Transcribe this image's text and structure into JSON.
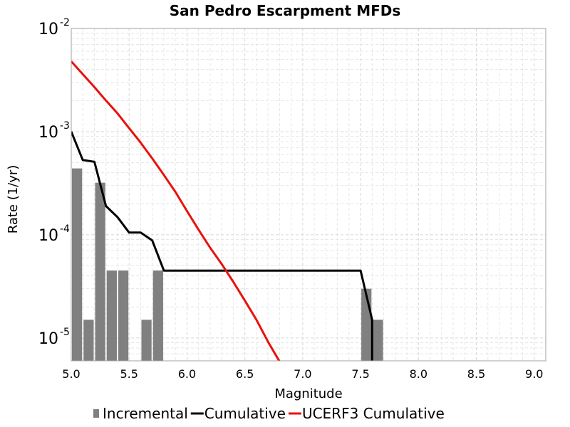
{
  "chart_data": {
    "type": "bar",
    "title": "San Pedro Escarpment MFDs",
    "xlabel": "Magnitude",
    "ylabel": "Rate (1/yr)",
    "xlim": [
      5.0,
      9.1
    ],
    "ylim": [
      6e-06,
      0.01
    ],
    "yscale": "log",
    "grid": true,
    "legend_position": "bottom",
    "xticks": [
      "5.0",
      "5.5",
      "6.0",
      "6.5",
      "7.0",
      "7.5",
      "8.0",
      "8.5",
      "9.0"
    ],
    "yticks": [
      {
        "value": 1e-05,
        "base": "10",
        "exp": "-5"
      },
      {
        "value": 0.0001,
        "base": "10",
        "exp": "-4"
      },
      {
        "value": 0.001,
        "base": "10",
        "exp": "-3"
      },
      {
        "value": 0.01,
        "base": "10",
        "exp": "-2"
      }
    ],
    "series": [
      {
        "name": "Incremental",
        "type": "bar",
        "color": "#808080",
        "x": [
          5.05,
          5.15,
          5.25,
          5.35,
          5.45,
          5.65,
          5.75,
          7.55,
          7.65
        ],
        "values": [
          0.00044,
          1.5e-05,
          0.00032,
          4.5e-05,
          4.5e-05,
          1.5e-05,
          4.5e-05,
          3e-05,
          1.5e-05
        ]
      },
      {
        "name": "Cumulative",
        "type": "line",
        "color": "#000000",
        "x": [
          5.0,
          5.1,
          5.2,
          5.3,
          5.4,
          5.5,
          5.6,
          5.7,
          5.8,
          7.5,
          7.6,
          7.6
        ],
        "values": [
          0.001,
          0.00053,
          0.00051,
          0.00019,
          0.000148,
          0.000105,
          0.000105,
          8.8e-05,
          4.5e-05,
          4.5e-05,
          1.5e-05,
          6e-06
        ]
      },
      {
        "name": "UCERF3 Cumulative",
        "type": "line",
        "color": "#e8120c",
        "x": [
          5.0,
          5.1,
          5.2,
          5.3,
          5.4,
          5.5,
          5.6,
          5.7,
          5.8,
          5.9,
          6.0,
          6.1,
          6.2,
          6.3,
          6.4,
          6.5,
          6.6,
          6.7,
          6.8,
          6.9
        ],
        "values": [
          0.0048,
          0.0036,
          0.0027,
          0.002,
          0.0015,
          0.00108,
          0.00078,
          0.00055,
          0.00038,
          0.00026,
          0.00017,
          0.000112,
          7.5e-05,
          5.2e-05,
          3.5e-05,
          2.3e-05,
          1.5e-05,
          9.2e-06,
          5.9e-06,
          3.7e-06
        ]
      }
    ]
  }
}
